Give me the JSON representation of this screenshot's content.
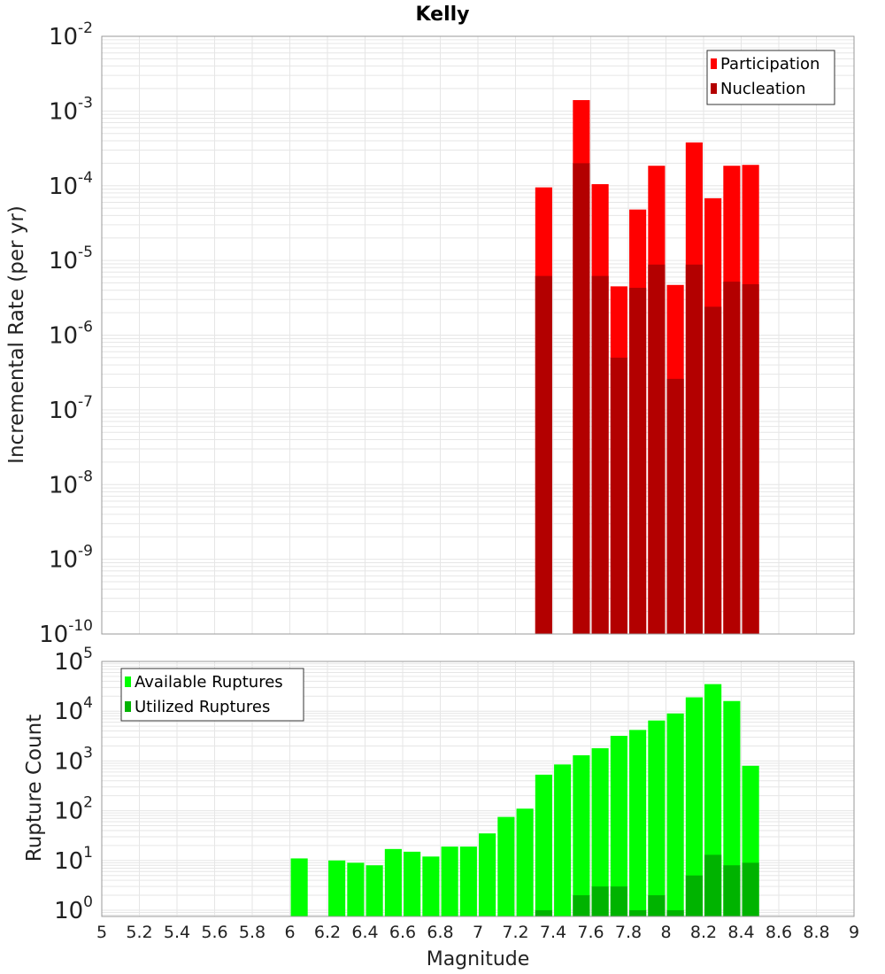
{
  "chart_data": [
    {
      "type": "bar",
      "title": "Kelly",
      "ylabel": "Incremental Rate (per yr)",
      "xlabel": "",
      "yscale": "log",
      "ylim": [
        1e-10,
        0.01
      ],
      "xlim": [
        5,
        9
      ],
      "grid": true,
      "legend_position": "top-right",
      "x": [
        7.35,
        7.55,
        7.65,
        7.75,
        7.85,
        7.95,
        8.05,
        8.15,
        8.25,
        8.35,
        8.45
      ],
      "series": [
        {
          "name": "Participation",
          "color": "#ff0000",
          "values": [
            9.5e-05,
            0.0014,
            0.000105,
            4.5e-06,
            4.8e-05,
            0.000185,
            4.7e-06,
            0.00038,
            6.8e-05,
            0.000185,
            0.00019
          ]
        },
        {
          "name": "Nucleation",
          "color": "#b30000",
          "values": [
            6.2e-06,
            0.0002,
            6.2e-06,
            5e-07,
            4.3e-06,
            8.8e-06,
            2.6e-07,
            8.8e-06,
            2.4e-06,
            5.2e-06,
            4.8e-06
          ]
        }
      ]
    },
    {
      "type": "bar",
      "title": "",
      "ylabel": "Rupture Count",
      "xlabel": "Magnitude",
      "yscale": "log",
      "ylim": [
        0.75,
        100000
      ],
      "xlim": [
        5,
        9
      ],
      "grid": true,
      "legend_position": "top-left",
      "x_ticks": [
        "5",
        "5.2",
        "5.4",
        "5.6",
        "5.8",
        "6",
        "6.2",
        "6.4",
        "6.6",
        "6.8",
        "7",
        "7.2",
        "7.4",
        "7.6",
        "7.8",
        "8",
        "8.2",
        "8.4",
        "8.6",
        "8.8",
        "9"
      ],
      "x": [
        6.05,
        6.25,
        6.35,
        6.45,
        6.55,
        6.65,
        6.75,
        6.85,
        6.95,
        7.05,
        7.15,
        7.25,
        7.35,
        7.45,
        7.55,
        7.65,
        7.75,
        7.85,
        7.95,
        8.05,
        8.15,
        8.25,
        8.35,
        8.45
      ],
      "series": [
        {
          "name": "Available Ruptures",
          "color": "#00ff00",
          "values": [
            11,
            10,
            9,
            8,
            17,
            15,
            12,
            19,
            19,
            35,
            75,
            110,
            530,
            850,
            1300,
            1800,
            3200,
            4200,
            6500,
            9000,
            19000,
            35000,
            16000,
            800
          ]
        },
        {
          "name": "Utilized Ruptures",
          "color": "#00b300",
          "values": [
            0,
            0,
            0,
            0,
            0,
            0,
            0,
            0,
            0,
            0,
            0,
            0,
            1,
            0,
            2,
            3,
            3,
            1,
            2,
            1,
            5,
            13,
            8,
            9
          ]
        }
      ]
    }
  ]
}
